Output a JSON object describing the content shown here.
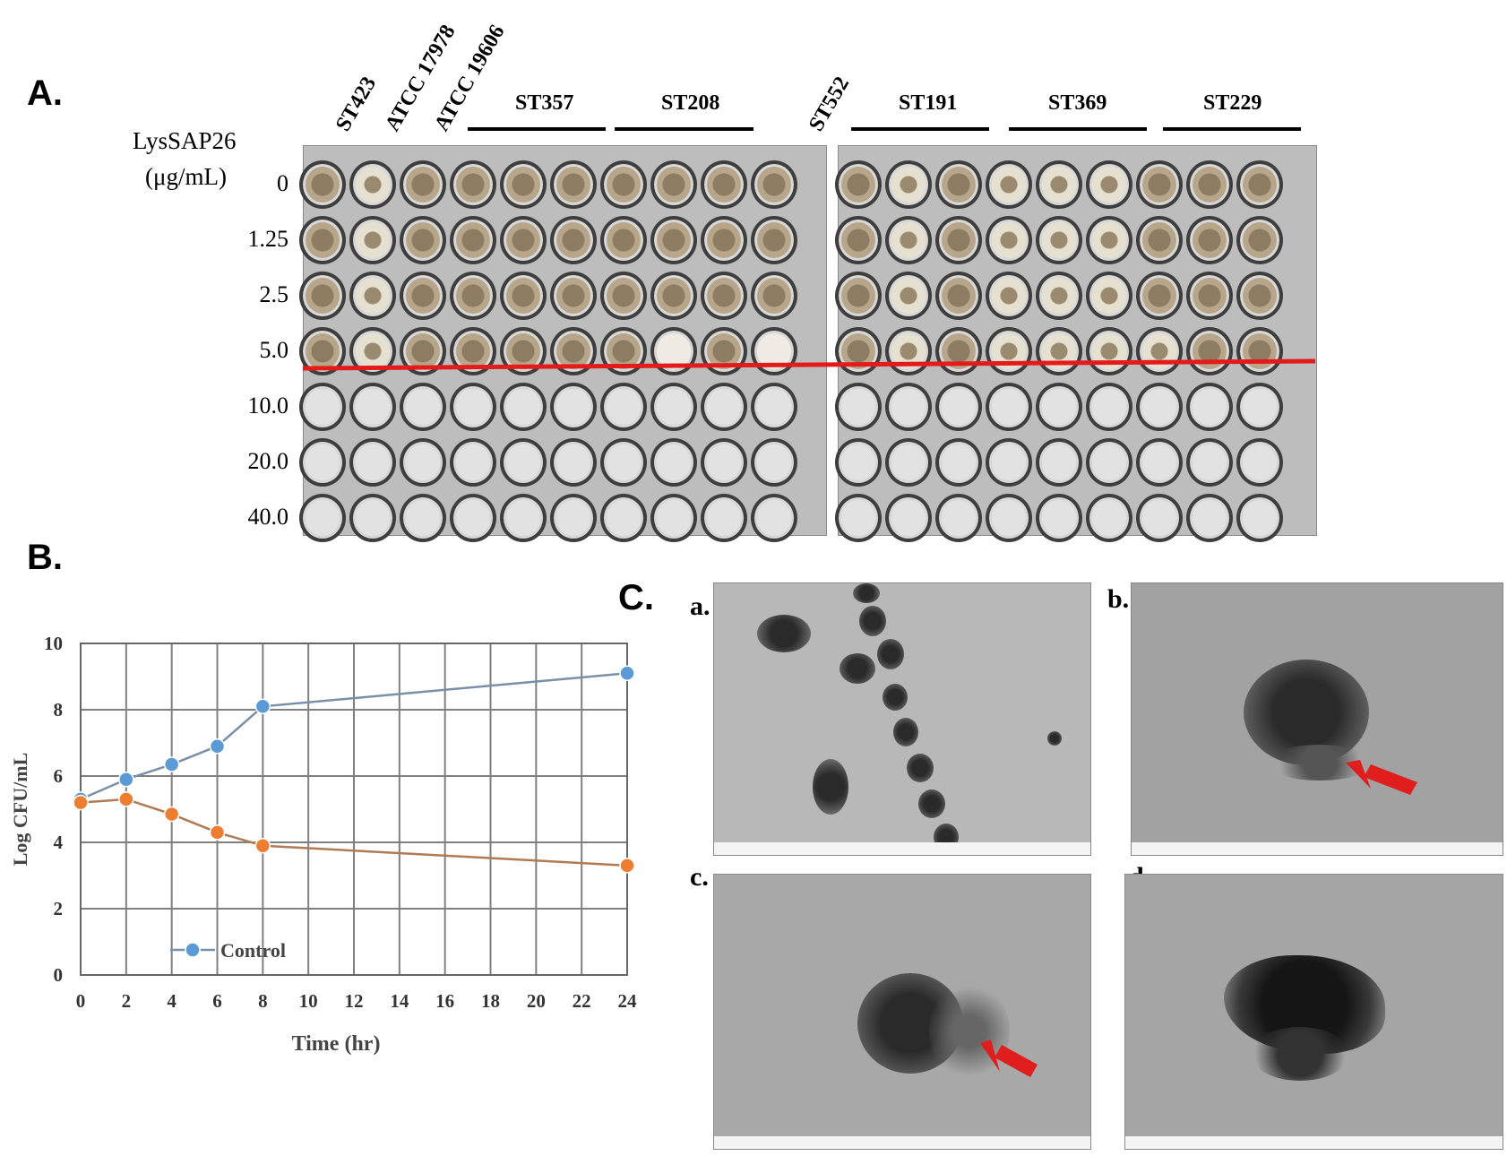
{
  "panels": {
    "a_label": "A.",
    "b_label": "B.",
    "c_label": "C."
  },
  "panel_a": {
    "rotated_strains": [
      "ST423",
      "ATCC 17978",
      "ATCC 19606",
      "ST552"
    ],
    "grouped_strains": [
      "ST357",
      "ST208",
      "ST191",
      "ST369",
      "ST229"
    ],
    "conc_title_line1": "LysSAP26",
    "conc_title_line2": "(μg/mL)",
    "concentrations": [
      "0",
      "1.25",
      "2.5",
      "5.0",
      "10.0",
      "20.0",
      "40.0"
    ],
    "mic_line_color": "#e41b1b"
  },
  "panel_c": {
    "sub_labels": [
      "a.",
      "b.",
      "c.",
      "d."
    ],
    "arrow_color": "#e01e1e"
  },
  "chart_data": {
    "type": "line",
    "xlabel": "Time (hr)",
    "ylabel": "Log CFU/mL",
    "x_ticks": [
      "0",
      "2",
      "4",
      "6",
      "8",
      "10",
      "12",
      "14",
      "16",
      "18",
      "20",
      "22",
      "24"
    ],
    "y_ticks": [
      "0",
      "2",
      "4",
      "6",
      "8",
      "10"
    ],
    "xlim": [
      0,
      24
    ],
    "ylim": [
      0,
      10
    ],
    "grid": true,
    "legend_position": "bottom-left",
    "series": [
      {
        "name": "Control",
        "color": "#5b9bd5",
        "line_color": "#7a8fa8",
        "x": [
          0,
          2,
          4,
          6,
          8,
          24
        ],
        "y": [
          5.3,
          5.9,
          6.35,
          6.9,
          8.1,
          9.1
        ]
      },
      {
        "color": "#ed7d31",
        "line_color": "#b07a55",
        "x": [
          0,
          2,
          4,
          6,
          8,
          24
        ],
        "y": [
          5.2,
          5.3,
          4.85,
          4.3,
          3.9,
          3.3
        ]
      }
    ]
  }
}
